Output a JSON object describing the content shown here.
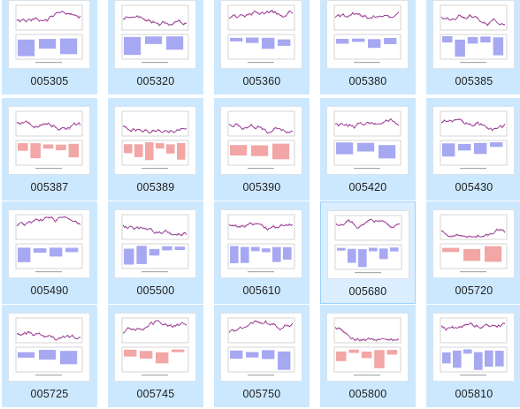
{
  "folder": {
    "items": [
      {
        "name": "005305",
        "bars": "blue"
      },
      {
        "name": "005320",
        "bars": "blue"
      },
      {
        "name": "005360",
        "bars": "blue"
      },
      {
        "name": "005380",
        "bars": "blue"
      },
      {
        "name": "005385",
        "bars": "blue"
      },
      {
        "name": "005387",
        "bars": "red"
      },
      {
        "name": "005389",
        "bars": "red"
      },
      {
        "name": "005390",
        "bars": "red"
      },
      {
        "name": "005420",
        "bars": "blue"
      },
      {
        "name": "005430",
        "bars": "blue"
      },
      {
        "name": "005490",
        "bars": "blue"
      },
      {
        "name": "005500",
        "bars": "blue"
      },
      {
        "name": "005610",
        "bars": "blue"
      },
      {
        "name": "005680",
        "bars": "blue",
        "selected": true
      },
      {
        "name": "005720",
        "bars": "red"
      },
      {
        "name": "005725",
        "bars": "blue"
      },
      {
        "name": "005745",
        "bars": "red"
      },
      {
        "name": "005750",
        "bars": "blue"
      },
      {
        "name": "005800",
        "bars": "red"
      },
      {
        "name": "005810",
        "bars": "blue"
      }
    ]
  },
  "colors": {
    "tile_bg": "#cce8ff",
    "tile_selected_bg": "#dbeeff",
    "line_purple": "#7b2a8a",
    "line_pink": "#d25aa0",
    "bar_blue": "#a7a8f2",
    "bar_red": "#f2a6a6"
  }
}
